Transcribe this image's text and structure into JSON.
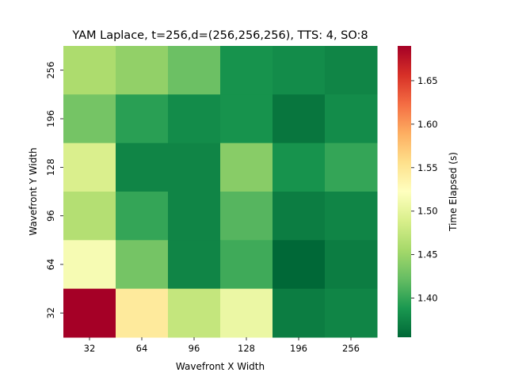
{
  "chart_data": {
    "type": "heatmap",
    "title": "YAM Laplace, t=256,d=(256,256,256), TTS: 4, SO:8",
    "xlabel": "Wavefront X Width",
    "ylabel": "Wavefront Y Width",
    "colorbar_label": "Time Elapsed (s)",
    "x_categories": [
      "32",
      "64",
      "96",
      "128",
      "196",
      "256"
    ],
    "y_categories": [
      "256",
      "196",
      "128",
      "96",
      "64",
      "32"
    ],
    "values": [
      [
        1.46,
        1.445,
        1.425,
        1.385,
        1.38,
        1.375
      ],
      [
        1.43,
        1.395,
        1.38,
        1.385,
        1.365,
        1.38
      ],
      [
        1.49,
        1.375,
        1.375,
        1.44,
        1.385,
        1.4
      ],
      [
        1.465,
        1.4,
        1.375,
        1.415,
        1.37,
        1.375
      ],
      [
        1.515,
        1.43,
        1.375,
        1.405,
        1.355,
        1.37
      ],
      [
        1.69,
        1.545,
        1.475,
        1.505,
        1.37,
        1.375
      ]
    ],
    "colorbar": {
      "min": 1.355,
      "max": 1.69,
      "ticks": [
        "1.40",
        "1.45",
        "1.50",
        "1.55",
        "1.60",
        "1.65"
      ],
      "colormap": "RdYlGn_r"
    }
  }
}
